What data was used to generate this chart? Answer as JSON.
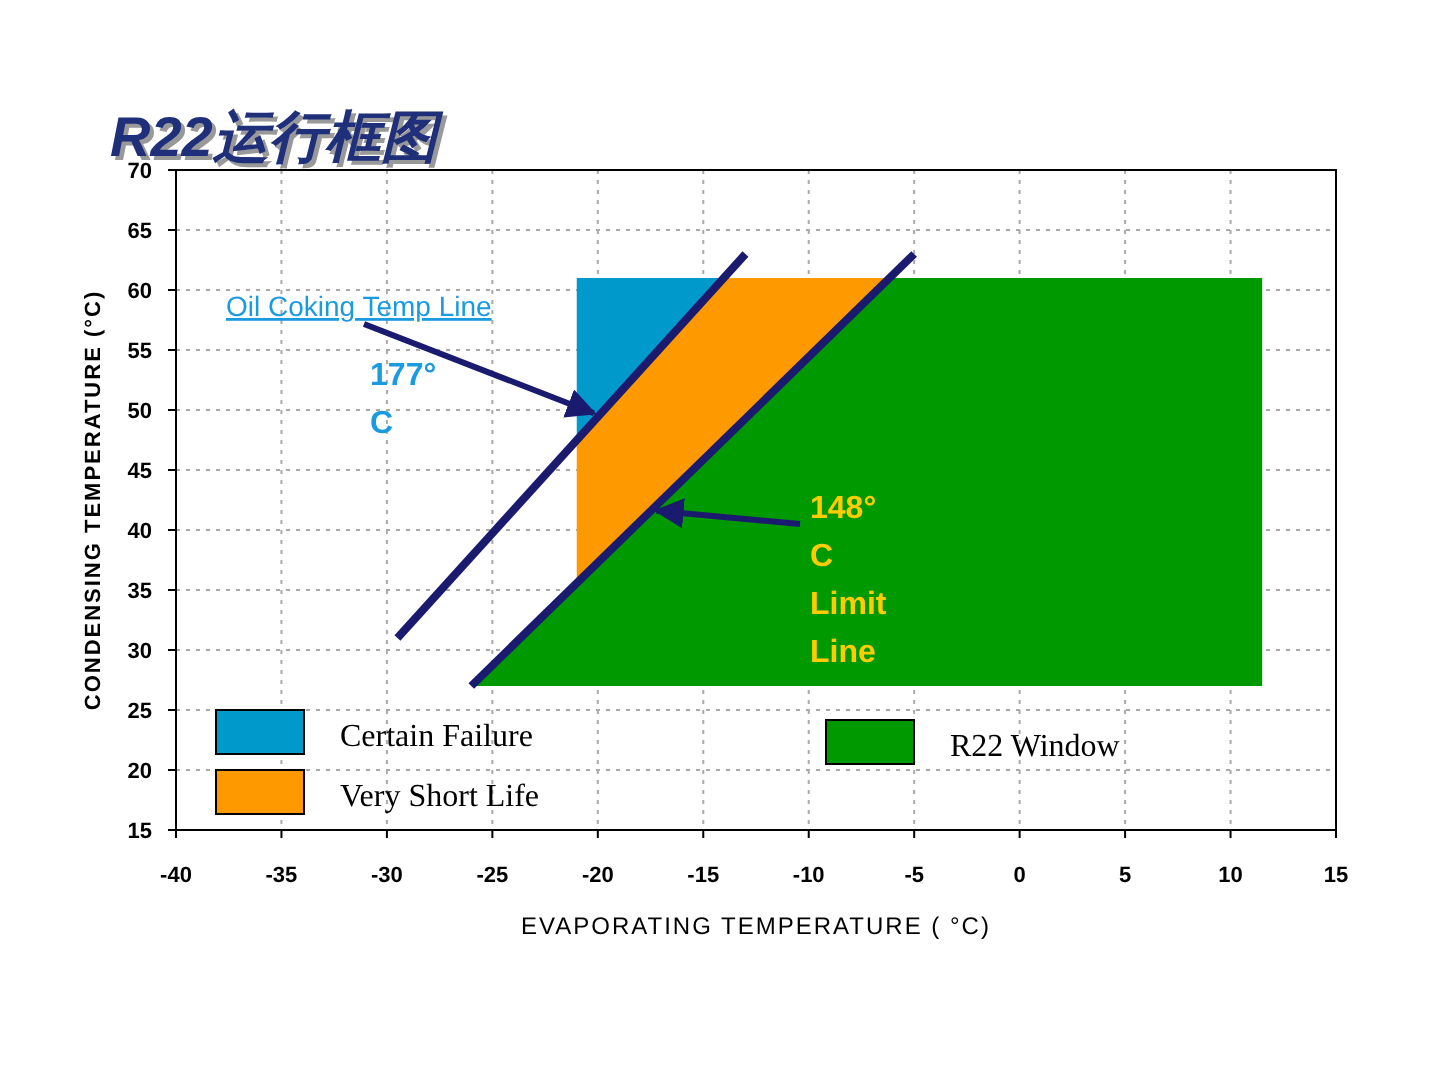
{
  "chart_data": {
    "type": "area",
    "title": "R22运行框图",
    "xlabel": "EVAPORATING TEMPERATURE ( °C)",
    "ylabel": "CONDENSING TEMPERATURE (°C)",
    "xlim": [
      -40,
      15
    ],
    "xticks": [
      -40,
      -35,
      -30,
      -25,
      -20,
      -15,
      -10,
      -5,
      0,
      5,
      10,
      15
    ],
    "ylim": [
      15,
      70
    ],
    "yticks": [
      15,
      20,
      25,
      30,
      35,
      40,
      45,
      50,
      55,
      60,
      65,
      70
    ],
    "grid": true,
    "legend": "bottom",
    "series": [
      {
        "name": "R22 Window",
        "color": "#009900",
        "x": [
          -26,
          -6.2,
          11.5,
          11.5,
          -26
        ],
        "values": [
          27,
          61,
          61,
          27,
          27
        ]
      },
      {
        "name": "Very Short Life",
        "color": "#ff9900",
        "x": [
          -21,
          -14,
          -6.2,
          -14,
          -21,
          -21
        ],
        "values": [
          47.5,
          61,
          61,
          47.6,
          35.6,
          47.5
        ]
      },
      {
        "name": "Certain Failure",
        "color": "#0099cc",
        "x": [
          -21,
          -14,
          -21,
          -21
        ],
        "values": [
          61,
          61,
          47.5,
          61
        ]
      },
      {
        "type": "line",
        "name": "177° C",
        "color": "#1a1a6e",
        "x": [
          -29.5,
          -13
        ],
        "values": [
          31,
          63
        ]
      },
      {
        "type": "line",
        "color": "#1a1a6e",
        "x": [
          -26,
          -5
        ],
        "values": [
          27,
          63
        ]
      }
    ],
    "annotations": [
      {
        "text": "Oil Coking Temp Line",
        "x": -20,
        "y": 49.4
      },
      {
        "text": "148° C Limit Line",
        "x": -17.5,
        "y": 41.6
      }
    ]
  }
}
